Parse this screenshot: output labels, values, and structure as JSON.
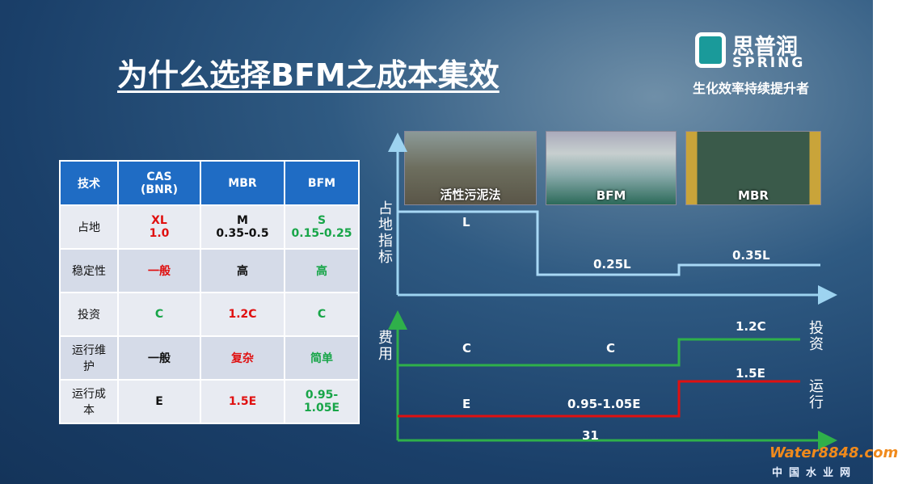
{
  "header": {
    "title": "为什么选择BFM之成本集效",
    "logo": {
      "name": "思普润",
      "brand": "SPRING",
      "slogan": "生化效率持续提升者"
    }
  },
  "table": {
    "header": [
      "技术",
      "CAS\n(BNR)",
      "MBR",
      "BFM"
    ],
    "rows": [
      [
        {
          "text": "占地",
          "color": "black"
        },
        {
          "text": "XL\n1.0",
          "color": "red"
        },
        {
          "text": "M\n0.35-0.5",
          "color": "black"
        },
        {
          "text": "S\n0.15-0.25",
          "color": "green"
        }
      ],
      [
        {
          "text": "稳定性",
          "color": "black"
        },
        {
          "text": "一般",
          "color": "red"
        },
        {
          "text": "高",
          "color": "black"
        },
        {
          "text": "高",
          "color": "green"
        }
      ],
      [
        {
          "text": "投资",
          "color": "black"
        },
        {
          "text": "C",
          "color": "green"
        },
        {
          "text": "1.2C",
          "color": "red"
        },
        {
          "text": "C",
          "color": "green"
        }
      ],
      [
        {
          "text": "运行维\n护",
          "color": "black"
        },
        {
          "text": "一般",
          "color": "black"
        },
        {
          "text": "复杂",
          "color": "red"
        },
        {
          "text": "简单",
          "color": "green"
        }
      ],
      [
        {
          "text": "运行成\n本",
          "color": "black"
        },
        {
          "text": "E",
          "color": "black"
        },
        {
          "text": "1.5E",
          "color": "red"
        },
        {
          "text": "0.95-\n1.05E",
          "color": "green"
        }
      ]
    ]
  },
  "diagram": {
    "photos": [
      "活性污泥法",
      "BFM",
      "MBR"
    ],
    "footprint": {
      "axis_label": "占地指标",
      "labels": [
        "L",
        "0.25L",
        "0.35L"
      ]
    },
    "cost": {
      "axis_label": "费用",
      "investment": {
        "name": "投资",
        "labels": [
          "C",
          "C",
          "1.2C"
        ]
      },
      "operation": {
        "name": "运行",
        "labels": [
          "E",
          "0.95-1.05E",
          "1.5E"
        ]
      },
      "bottom_label": "31"
    }
  },
  "watermark": {
    "site": "Water8848.com",
    "name": "中国水业网"
  }
}
